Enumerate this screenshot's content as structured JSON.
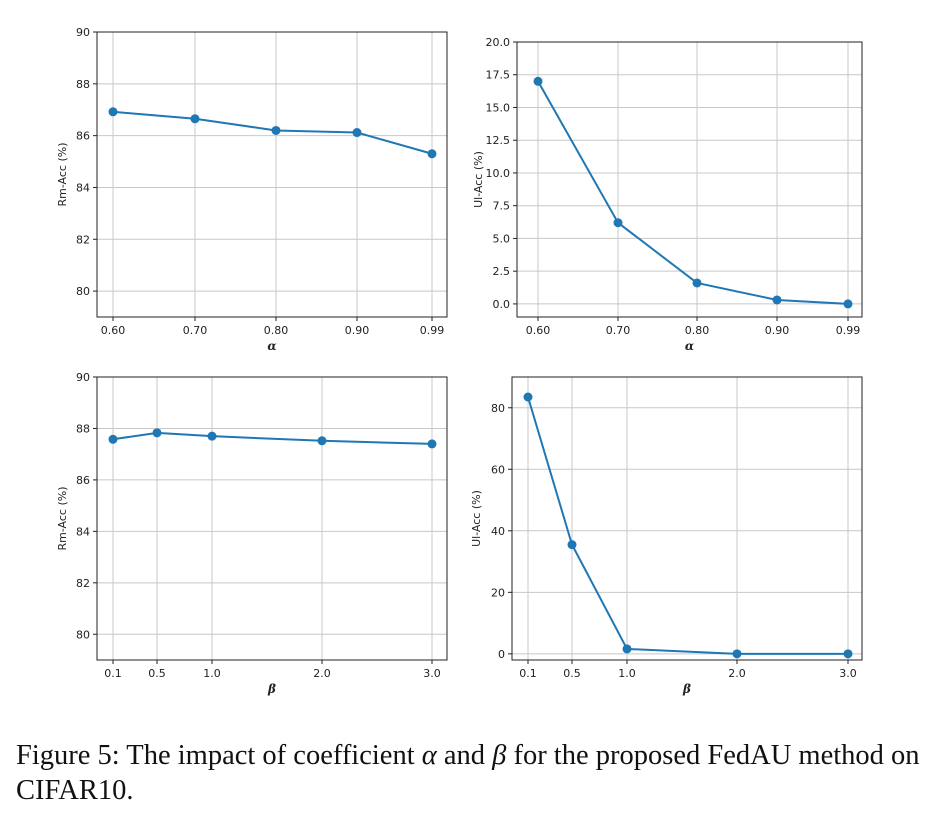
{
  "chart_data": [
    {
      "type": "line",
      "x": [
        "0.60",
        "0.70",
        "0.80",
        "0.90",
        "0.99"
      ],
      "series": [
        {
          "values": [
            86.92,
            86.65,
            86.2,
            86.12,
            85.3
          ],
          "color": "#1f77b4"
        }
      ],
      "xlabel": "α",
      "ylabel": "Rm-Acc (%)",
      "ylim": [
        79,
        90
      ],
      "yticks": [
        "80",
        "82",
        "84",
        "86",
        "88",
        "90"
      ],
      "grid": true
    },
    {
      "type": "line",
      "x": [
        "0.60",
        "0.70",
        "0.80",
        "0.90",
        "0.99"
      ],
      "series": [
        {
          "values": [
            17.0,
            6.2,
            1.6,
            0.3,
            0.0
          ],
          "color": "#1f77b4"
        }
      ],
      "xlabel": "α",
      "ylabel": "Ul-Acc (%)",
      "ylim": [
        -1,
        20
      ],
      "yticks": [
        "0.0",
        "2.5",
        "5.0",
        "7.5",
        "10.0",
        "12.5",
        "15.0",
        "17.5",
        "20.0"
      ],
      "grid": true
    },
    {
      "type": "line",
      "x": [
        "0.1",
        "0.5",
        "1.0",
        "2.0",
        "3.0"
      ],
      "series": [
        {
          "values": [
            87.58,
            87.83,
            87.7,
            87.52,
            87.4
          ],
          "color": "#1f77b4"
        }
      ],
      "xlabel": "β",
      "ylabel": "Rm-Acc (%)",
      "ylim": [
        79,
        90
      ],
      "yticks": [
        "80",
        "82",
        "84",
        "86",
        "88",
        "90"
      ],
      "grid": true
    },
    {
      "type": "line",
      "x": [
        "0.1",
        "0.5",
        "1.0",
        "2.0",
        "3.0"
      ],
      "series": [
        {
          "values": [
            83.5,
            35.5,
            1.6,
            0.0,
            0.0
          ],
          "color": "#1f77b4"
        }
      ],
      "xlabel": "β",
      "ylabel": "Ul-Acc (%)",
      "ylim": [
        -2,
        90
      ],
      "yticks": [
        "0",
        "20",
        "40",
        "60",
        "80"
      ],
      "grid": true
    }
  ],
  "caption": {
    "prefix": "Figure 5: The impact of coefficient ",
    "alpha": "α",
    "mid": " and ",
    "beta": "β",
    "suffix": " for the proposed FedAU method on CIFAR10."
  }
}
